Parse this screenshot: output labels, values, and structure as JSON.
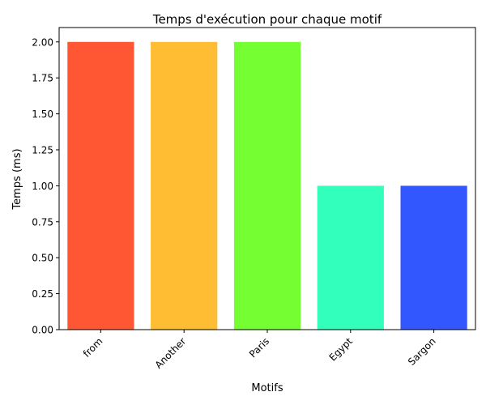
{
  "chart_data": {
    "type": "bar",
    "title": "Temps d'exécution pour chaque motif",
    "xlabel": "Motifs",
    "ylabel": "Temps (ms)",
    "categories": [
      "from",
      "Another",
      "Paris",
      "Egypt",
      "Sargon"
    ],
    "values": [
      2.0,
      2.0,
      2.0,
      1.0,
      1.0
    ],
    "colors": [
      "#ff5733",
      "#ffbd33",
      "#75ff33",
      "#33ffbd",
      "#3357ff"
    ],
    "ylim": [
      0,
      2.1
    ],
    "yticks": [
      0.0,
      0.25,
      0.5,
      0.75,
      1.0,
      1.25,
      1.5,
      1.75,
      2.0
    ],
    "ytick_labels": [
      "0.00",
      "0.25",
      "0.50",
      "0.75",
      "1.00",
      "1.25",
      "1.50",
      "1.75",
      "2.00"
    ],
    "grid": false,
    "xtick_rotation_deg": 45
  }
}
